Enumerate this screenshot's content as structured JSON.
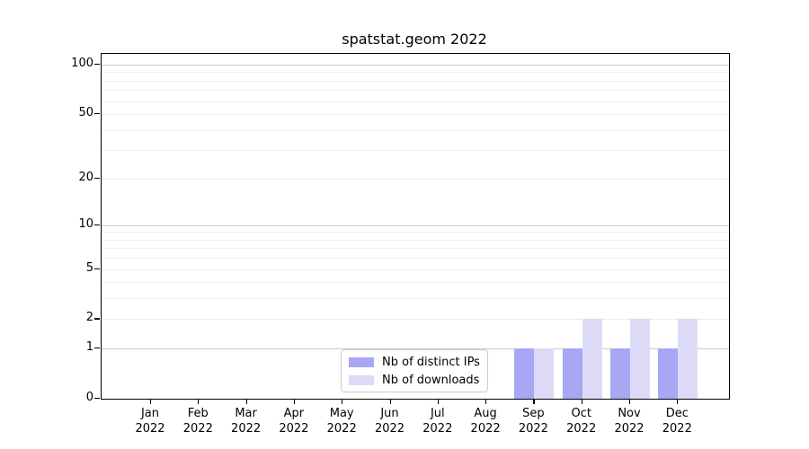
{
  "chart_data": {
    "type": "bar",
    "title": "spatstat.geom 2022",
    "categories": [
      "Jan 2022",
      "Feb 2022",
      "Mar 2022",
      "Apr 2022",
      "May 2022",
      "Jun 2022",
      "Jul 2022",
      "Aug 2022",
      "Sep 2022",
      "Oct 2022",
      "Nov 2022",
      "Dec 2022"
    ],
    "series": [
      {
        "name": "Nb of distinct IPs",
        "color": "#a7a7f3",
        "values": [
          0,
          0,
          0,
          0,
          0,
          0,
          0,
          0,
          1,
          1,
          1,
          1
        ]
      },
      {
        "name": "Nb of downloads",
        "color": "#dcdcf8",
        "values": [
          0,
          0,
          0,
          0,
          0,
          0,
          0,
          0,
          1,
          2,
          2,
          2
        ]
      }
    ],
    "yscale": "log1p",
    "ylim": [
      0,
      117
    ],
    "yticks": [
      0,
      1,
      2,
      5,
      10,
      20,
      50,
      100
    ],
    "major_gridlines": [
      1,
      10,
      100
    ],
    "minor_gridlines": [
      2,
      3,
      4,
      5,
      6,
      7,
      8,
      9,
      20,
      30,
      40,
      50,
      60,
      70,
      80,
      90
    ],
    "grid": "horizontal",
    "legend_position": "inside-bottom-center",
    "bar_group": "paired"
  },
  "colors": {
    "axis": "#000000",
    "major_grid": "#c9c9c9",
    "minor_grid": "#ededed",
    "legend_border": "#cccccc",
    "background": "#ffffff"
  }
}
